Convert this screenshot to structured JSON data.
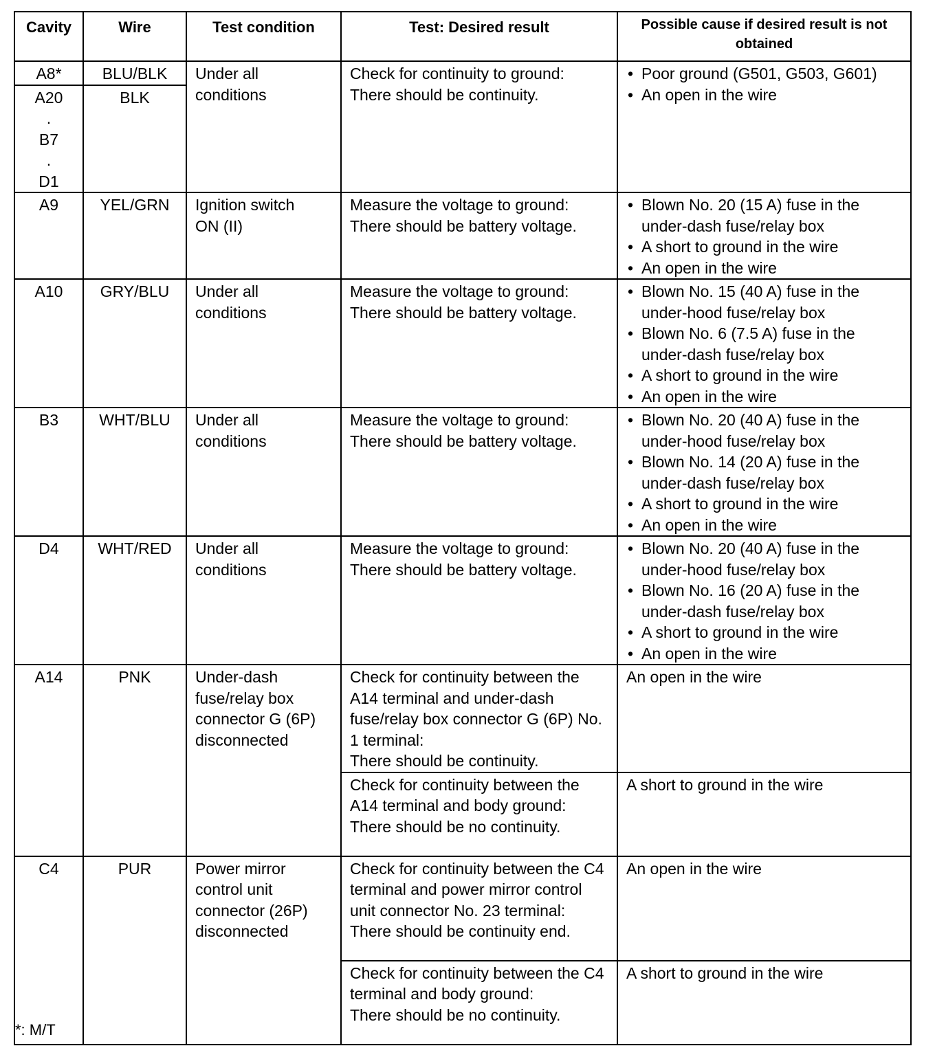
{
  "headers": [
    "Cavity",
    "Wire",
    "Test condition",
    "Test: Desired result",
    "Possible cause if desired result is not obtained"
  ],
  "rows": [
    {
      "cavity": "A8*",
      "wire": "BLU/BLK",
      "cavity2": "A20\n.\nB7\n.\nD1",
      "wire2": "BLK",
      "condition": "Under all\nconditions",
      "result": "Check for continuity to ground:\nThere should be continuity.",
      "causes": [
        "Poor ground (G501, G503, G601)",
        "An open in the wire"
      ]
    },
    {
      "cavity": "A9",
      "wire": "YEL/GRN",
      "condition": "Ignition switch\nON (II)",
      "result": "Measure the voltage to ground:\nThere should be battery voltage.",
      "causes": [
        "Blown No. 20 (15 A) fuse in the under-dash fuse/relay box",
        "A short to ground in the wire",
        "An open in the wire"
      ]
    },
    {
      "cavity": "A10",
      "wire": "GRY/BLU",
      "condition": "Under all\nconditions",
      "result": "Measure the voltage to ground:\nThere should be battery voltage.",
      "causes": [
        "Blown No. 15 (40 A) fuse in the under-hood fuse/relay box",
        "Blown No. 6 (7.5 A) fuse in the under-dash fuse/relay box",
        "A short to ground in the wire",
        "An open in the wire"
      ]
    },
    {
      "cavity": "B3",
      "wire": "WHT/BLU",
      "condition": "Under all\nconditions",
      "result": "Measure the voltage to ground:\nThere should be battery voltage.",
      "causes": [
        "Blown No. 20 (40 A) fuse in the under-hood fuse/relay box",
        "Blown No. 14 (20 A) fuse in the under-dash fuse/relay box",
        "A short to ground in the wire",
        "An open in the wire"
      ]
    },
    {
      "cavity": "D4",
      "wire": "WHT/RED",
      "condition": "Under all\nconditions",
      "result": "Measure the voltage to ground:\nThere should be battery voltage.",
      "causes": [
        "Blown No. 20 (40 A) fuse in the under-hood fuse/relay box",
        "Blown No. 16 (20 A) fuse in the under-dash fuse/relay box",
        "A short to ground in the wire",
        "An open in the wire"
      ]
    },
    {
      "cavity": "A14",
      "wire": "PNK",
      "condition": "Under-dash\nfuse/relay box\nconnector G (6P)\ndisconnected",
      "tests": [
        {
          "result": "Check for continuity between the A14 terminal and under-dash fuse/relay box connector G (6P) No. 1 terminal:\nThere should be continuity.",
          "cause": "An open in the wire"
        },
        {
          "result": "Check for continuity between the A14 terminal and body ground:\nThere should be no continuity.",
          "cause": "A short to ground in the wire"
        }
      ]
    },
    {
      "cavity": "C4",
      "wire": "PUR",
      "condition": "Power mirror\ncontrol unit\nconnector (26P)\ndisconnected",
      "tests": [
        {
          "result": "Check for continuity between the C4 terminal and power mirror control unit connector No. 23 terminal:\nThere should be continuity end.",
          "cause": "An open in the wire"
        },
        {
          "result": "Check for continuity between the C4 terminal and body ground:\nThere should be no continuity.",
          "cause": "A short to ground in the wire"
        }
      ]
    }
  ],
  "footnote": "*:  M/T"
}
